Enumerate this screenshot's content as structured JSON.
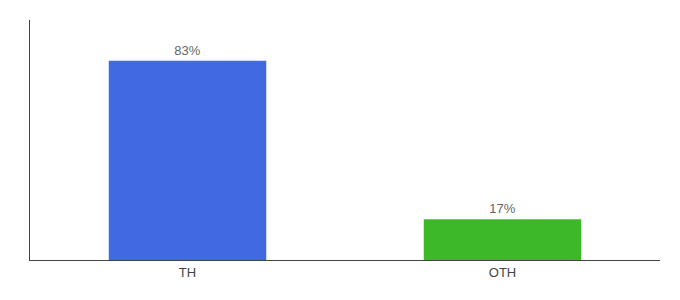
{
  "chart_data": {
    "type": "bar",
    "categories": [
      "TH",
      "OTH"
    ],
    "values": [
      83,
      17
    ],
    "value_labels": [
      "83%",
      "17%"
    ],
    "colors": [
      "#4169E1",
      "#3CB828"
    ],
    "ylim": [
      0,
      100
    ],
    "data_labels": true,
    "tick_labels": "x",
    "grid": false
  }
}
